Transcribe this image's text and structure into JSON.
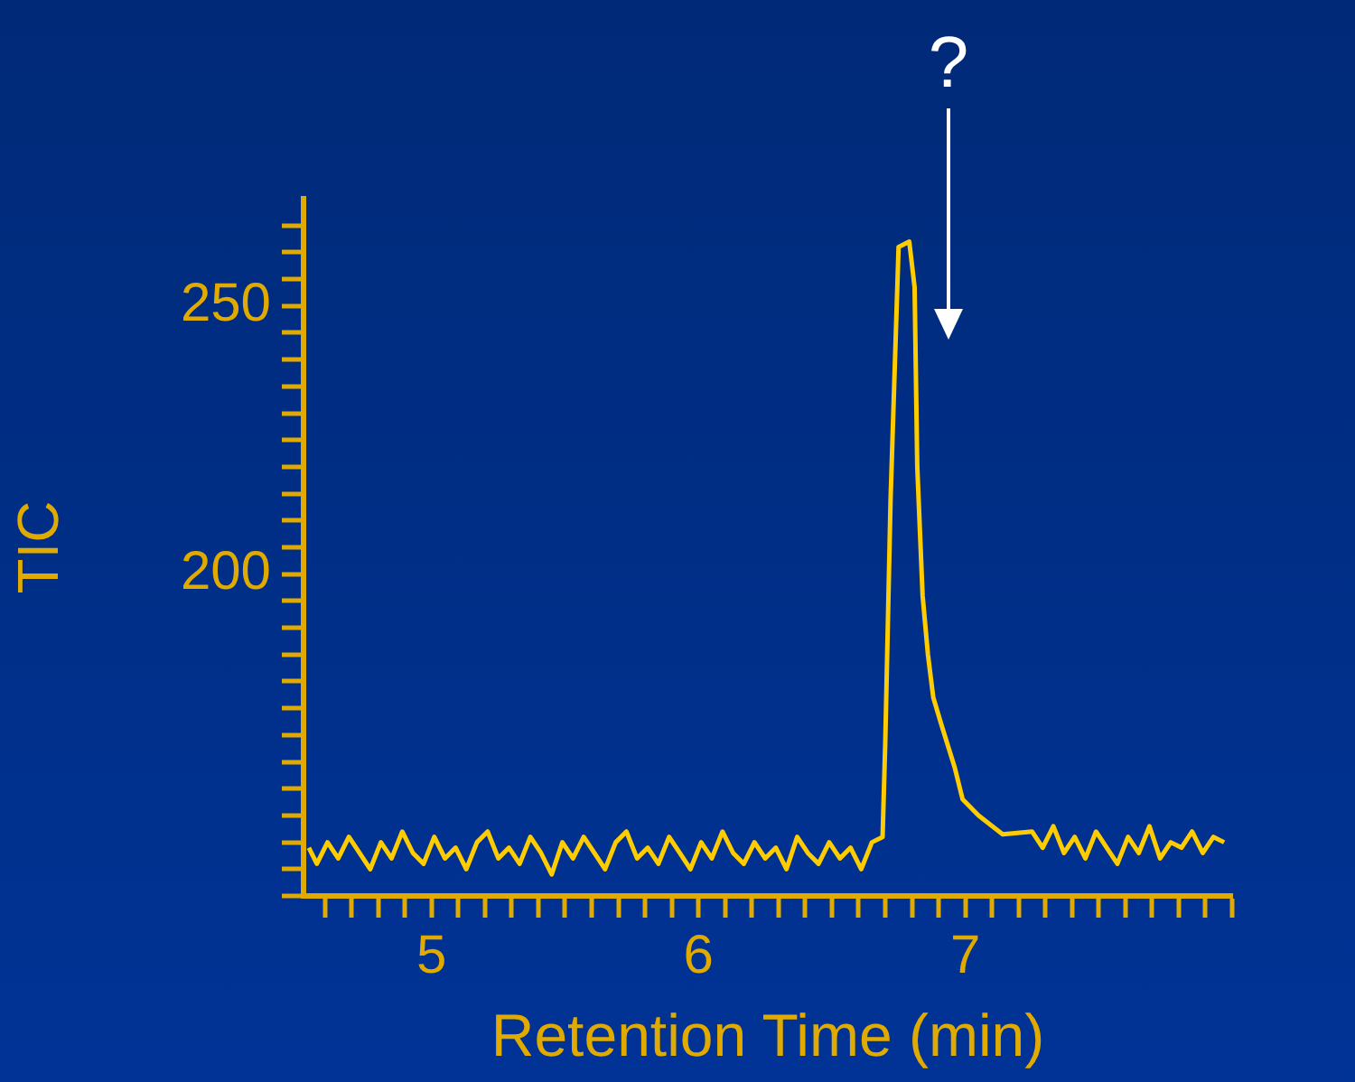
{
  "chart_data": {
    "type": "line",
    "xlabel": "Retention Time (min)",
    "ylabel": "TIC",
    "annotations": [
      "?"
    ],
    "xlim": [
      4.52,
      8.0
    ],
    "xticks": [
      {
        "value": 4.6,
        "label": null
      },
      {
        "value": 4.7,
        "label": null
      },
      {
        "value": 4.8,
        "label": null
      },
      {
        "value": 4.9,
        "label": null
      },
      5,
      {
        "value": 5.1,
        "label": null
      },
      {
        "value": 5.2,
        "label": null
      },
      {
        "value": 5.3,
        "label": null
      },
      {
        "value": 5.4,
        "label": null
      },
      {
        "value": 5.5,
        "label": null
      },
      {
        "value": 5.6,
        "label": null
      },
      {
        "value": 5.7,
        "label": null
      },
      {
        "value": 5.8,
        "label": null
      },
      {
        "value": 5.9,
        "label": null
      },
      6,
      {
        "value": 6.1,
        "label": null
      },
      {
        "value": 6.2,
        "label": null
      },
      {
        "value": 6.3,
        "label": null
      },
      {
        "value": 6.4,
        "label": null
      },
      {
        "value": 6.5,
        "label": null
      },
      {
        "value": 6.6,
        "label": null
      },
      {
        "value": 6.7,
        "label": null
      },
      {
        "value": 6.8,
        "label": null
      },
      {
        "value": 6.9,
        "label": null
      },
      7,
      {
        "value": 7.1,
        "label": null
      },
      {
        "value": 7.2,
        "label": null
      },
      {
        "value": 7.3,
        "label": null
      },
      {
        "value": 7.4,
        "label": null
      },
      {
        "value": 7.5,
        "label": null
      },
      {
        "value": 7.6,
        "label": null
      },
      {
        "value": 7.7,
        "label": null
      },
      {
        "value": 7.8,
        "label": null
      },
      {
        "value": 7.9,
        "label": null
      },
      {
        "value": 8.0,
        "label": null
      }
    ],
    "ylim": [
      140,
      270
    ],
    "yticks": [
      {
        "value": 140,
        "label": null
      },
      {
        "value": 145,
        "label": null
      },
      {
        "value": 150,
        "label": null
      },
      {
        "value": 155,
        "label": null
      },
      {
        "value": 160,
        "label": null
      },
      {
        "value": 165,
        "label": null
      },
      {
        "value": 170,
        "label": null
      },
      {
        "value": 175,
        "label": null
      },
      {
        "value": 180,
        "label": null
      },
      {
        "value": 185,
        "label": null
      },
      {
        "value": 190,
        "label": null
      },
      {
        "value": 195,
        "label": null
      },
      200,
      {
        "value": 205,
        "label": null
      },
      {
        "value": 210,
        "label": null
      },
      {
        "value": 215,
        "label": null
      },
      {
        "value": 220,
        "label": null
      },
      {
        "value": 225,
        "label": null
      },
      {
        "value": 230,
        "label": null
      },
      {
        "value": 235,
        "label": null
      },
      {
        "value": 240,
        "label": null
      },
      {
        "value": 245,
        "label": null
      },
      250,
      {
        "value": 255,
        "label": null
      },
      {
        "value": 260,
        "label": null
      },
      {
        "value": 265,
        "label": null
      }
    ],
    "grid": false,
    "legend": false,
    "marker": "none",
    "line_style": "solid",
    "series": [
      {
        "color": "#ffcc00",
        "x": [
          4.54,
          4.57,
          4.61,
          4.65,
          4.69,
          4.73,
          4.77,
          4.81,
          4.85,
          4.89,
          4.93,
          4.97,
          5.01,
          5.05,
          5.09,
          5.13,
          5.17,
          5.21,
          5.25,
          5.29,
          5.33,
          5.37,
          5.41,
          5.45,
          5.49,
          5.53,
          5.57,
          5.61,
          5.65,
          5.69,
          5.73,
          5.77,
          5.81,
          5.85,
          5.89,
          5.93,
          5.97,
          6.01,
          6.05,
          6.09,
          6.13,
          6.17,
          6.21,
          6.25,
          6.29,
          6.33,
          6.37,
          6.41,
          6.45,
          6.49,
          6.53,
          6.57,
          6.61,
          6.65,
          6.69,
          6.7,
          6.72,
          6.75,
          6.79,
          6.81,
          6.82,
          6.84,
          6.86,
          6.88,
          6.91,
          6.96,
          6.99,
          7.05,
          7.14,
          7.25,
          7.29,
          7.33,
          7.37,
          7.41,
          7.45,
          7.49,
          7.53,
          7.57,
          7.61,
          7.65,
          7.69,
          7.73,
          7.77,
          7.81,
          7.85,
          7.89,
          7.93,
          7.97
        ],
        "values": [
          149,
          146,
          150,
          147,
          151,
          148,
          145,
          150,
          147,
          152,
          148,
          146,
          151,
          147,
          149,
          145,
          150,
          152,
          147,
          149,
          146,
          151,
          148,
          144,
          150,
          147,
          151,
          148,
          145,
          150,
          152,
          147,
          149,
          146,
          151,
          148,
          145,
          150,
          147,
          152,
          148,
          146,
          150,
          147,
          149,
          145,
          151,
          148,
          146,
          150,
          147,
          149,
          145,
          150,
          151,
          168.5,
          214,
          261,
          262,
          253.5,
          220,
          196,
          185,
          177,
          172,
          164,
          158,
          155,
          151.5,
          152,
          149,
          153,
          148,
          151,
          147,
          152,
          149,
          146,
          151,
          148,
          153,
          147,
          150,
          149,
          152,
          148,
          151,
          150
        ]
      }
    ]
  }
}
